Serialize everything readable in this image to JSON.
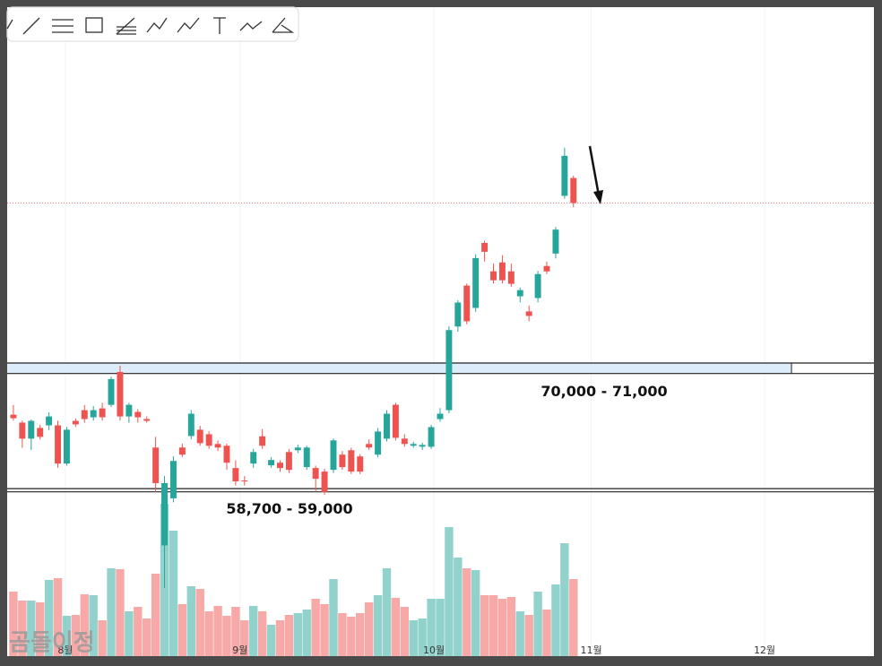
{
  "chart_data": {
    "type": "candlestick",
    "up_color": "#26a69a",
    "down_color": "#ef5350",
    "ylim": [
      43000,
      105000
    ],
    "y2lim": [
      0,
      724
    ],
    "xlim": [
      -0.7,
      96.8
    ],
    "xticks": [
      {
        "value": 5.85,
        "label": "8월"
      },
      {
        "value": 25.5,
        "label": "9월"
      },
      {
        "value": 47.3,
        "label": "10월"
      },
      {
        "value": 65,
        "label": "11월"
      },
      {
        "value": 84.5,
        "label": "12월"
      }
    ],
    "grid": true,
    "zones": [
      {
        "label": "70,000 - 71,000",
        "low": 70000,
        "high": 71000
      },
      {
        "label": "58,700 - 59,000",
        "low": 58700,
        "high": 59000
      }
    ],
    "watermark": "곰돌이정",
    "candles": [
      [
        66070,
        67000,
        65500,
        65730
      ],
      [
        65310,
        65500,
        62900,
        63780
      ],
      [
        63780,
        65600,
        62700,
        65480
      ],
      [
        64800,
        65100,
        63700,
        63950
      ],
      [
        65050,
        66300,
        64600,
        65900
      ],
      [
        65050,
        65500,
        61000,
        61400
      ],
      [
        61400,
        64900,
        61200,
        64630
      ],
      [
        65480,
        65700,
        64900,
        65140
      ],
      [
        66500,
        67000,
        65300,
        65650
      ],
      [
        65820,
        66900,
        65500,
        66500
      ],
      [
        66670,
        67200,
        65500,
        65820
      ],
      [
        67010,
        69700,
        66800,
        69470
      ],
      [
        70150,
        70750,
        65500,
        65900
      ],
      [
        65900,
        67200,
        65300,
        67010
      ],
      [
        66330,
        66600,
        65300,
        65820
      ],
      [
        65650,
        65900,
        65300,
        65480
      ],
      [
        62930,
        63950,
        58680,
        59530
      ],
      [
        53580,
        60210,
        49500,
        59530
      ],
      [
        58080,
        62100,
        57700,
        61650
      ],
      [
        62930,
        63300,
        62000,
        62250
      ],
      [
        64030,
        66500,
        63700,
        66160
      ],
      [
        64630,
        65000,
        63100,
        63350
      ],
      [
        64200,
        64500,
        62800,
        63100
      ],
      [
        63270,
        63600,
        62600,
        62930
      ],
      [
        63100,
        63300,
        60800,
        61480
      ],
      [
        60970,
        61700,
        59300,
        59700
      ],
      [
        59780,
        60200,
        59300,
        59700
      ],
      [
        61400,
        62800,
        61000,
        62500
      ],
      [
        64000,
        64700,
        62800,
        63100
      ],
      [
        61230,
        62000,
        61000,
        61740
      ],
      [
        61480,
        61700,
        60600,
        60970
      ],
      [
        62500,
        62800,
        60500,
        60800
      ],
      [
        62670,
        63200,
        62400,
        62930
      ],
      [
        61060,
        63100,
        60800,
        62930
      ],
      [
        60970,
        61200,
        58700,
        59950
      ],
      [
        60630,
        60900,
        58400,
        58680
      ],
      [
        60800,
        63800,
        60500,
        63610
      ],
      [
        62250,
        62600,
        60800,
        61060
      ],
      [
        62670,
        62900,
        60400,
        60630
      ],
      [
        62080,
        62300,
        60400,
        60630
      ],
      [
        63270,
        63700,
        62700,
        62930
      ],
      [
        62250,
        64800,
        62000,
        64460
      ],
      [
        63780,
        66500,
        63500,
        66160
      ],
      [
        67010,
        67200,
        63600,
        63860
      ],
      [
        63780,
        64200,
        63000,
        63270
      ],
      [
        63100,
        63500,
        62900,
        63270
      ],
      [
        63010,
        63400,
        62700,
        63180
      ],
      [
        63000,
        65100,
        62800,
        64880
      ],
      [
        65650,
        66700,
        65400,
        66160
      ],
      [
        66500,
        74500,
        66200,
        74150
      ],
      [
        74490,
        77000,
        74000,
        76780
      ],
      [
        78400,
        78600,
        74700,
        74990
      ],
      [
        76270,
        81400,
        75900,
        81030
      ],
      [
        82480,
        82700,
        80700,
        81630
      ],
      [
        79760,
        80500,
        78600,
        78910
      ],
      [
        80610,
        81300,
        78600,
        78910
      ],
      [
        79760,
        80500,
        78300,
        78570
      ],
      [
        77380,
        78200,
        76800,
        77970
      ],
      [
        75930,
        76500,
        75000,
        75500
      ],
      [
        77210,
        79800,
        76800,
        79500
      ],
      [
        80270,
        80700,
        79500,
        79760
      ],
      [
        81460,
        84000,
        81000,
        83750
      ],
      [
        86980,
        91570,
        86700,
        90800
      ],
      [
        88680,
        88900,
        85880,
        86300
      ]
    ],
    "volume": [
      72,
      62,
      62,
      60,
      85,
      87,
      45,
      46,
      69,
      68,
      40,
      98,
      97,
      50,
      55,
      42,
      92,
      170,
      140,
      58,
      78,
      75,
      50,
      56,
      45,
      55,
      40,
      56,
      50,
      35,
      40,
      46,
      48,
      52,
      64,
      58,
      86,
      48,
      44,
      48,
      60,
      68,
      98,
      65,
      55,
      40,
      42,
      64,
      64,
      144,
      110,
      98,
      96,
      68,
      68,
      64,
      66,
      50,
      46,
      72,
      52,
      80,
      126,
      86
    ]
  }
}
